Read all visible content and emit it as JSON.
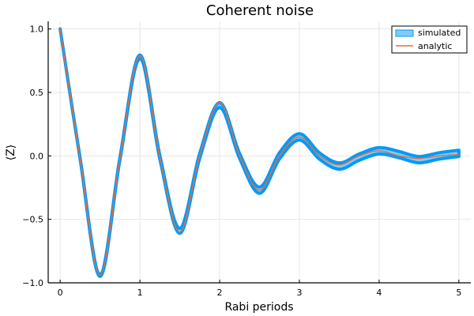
{
  "chart_data": {
    "type": "line",
    "title": "Coherent noise",
    "xlabel": "Rabi periods",
    "ylabel": "⟨Z⟩",
    "xlim": [
      -0.15,
      5.15
    ],
    "ylim": [
      -1.0,
      1.06
    ],
    "x_ticks": [
      0,
      1,
      2,
      3,
      4,
      5
    ],
    "x_tick_labels": [
      "0",
      "1",
      "2",
      "3",
      "4",
      "5"
    ],
    "y_ticks": [
      -1.0,
      -0.5,
      0.0,
      0.5,
      1.0
    ],
    "y_tick_labels": [
      "−1.0",
      "−0.5",
      "0.0",
      "0.5",
      "1.0"
    ],
    "grid": true,
    "legend_position": "top-right",
    "series": [
      {
        "name": "simulated",
        "style": "ribbon",
        "color": "#009af9",
        "x": [
          0,
          0.25,
          0.5,
          0.75,
          1.0,
          1.25,
          1.5,
          1.75,
          2.0,
          2.25,
          2.5,
          2.75,
          3.0,
          3.25,
          3.5,
          3.75,
          4.0,
          4.25,
          4.5,
          4.75,
          5.0
        ],
        "y_mean": [
          1.0,
          -0.02,
          -0.94,
          -0.02,
          0.78,
          -0.01,
          -0.59,
          0.0,
          0.4,
          0.0,
          -0.27,
          0.0,
          0.15,
          0.0,
          -0.08,
          -0.01,
          0.04,
          0.01,
          -0.03,
          0.0,
          0.02
        ],
        "y_band": [
          0.0,
          0.005,
          0.01,
          0.01,
          0.015,
          0.015,
          0.02,
          0.02,
          0.02,
          0.02,
          0.025,
          0.025,
          0.025,
          0.025,
          0.025,
          0.025,
          0.025,
          0.025,
          0.025,
          0.025,
          0.025
        ]
      },
      {
        "name": "analytic",
        "style": "line",
        "color": "#e26f46",
        "x": [
          0,
          0.25,
          0.5,
          0.75,
          1.0,
          1.25,
          1.5,
          1.75,
          2.0,
          2.25,
          2.5,
          2.75,
          3.0,
          3.25,
          3.5,
          3.75,
          4.0,
          4.25,
          4.5,
          4.75,
          5.0
        ],
        "y": [
          1.0,
          -0.02,
          -0.94,
          -0.02,
          0.79,
          -0.01,
          -0.6,
          0.0,
          0.42,
          0.0,
          -0.27,
          0.0,
          0.15,
          0.0,
          -0.07,
          0.0,
          0.04,
          0.0,
          -0.02,
          0.0,
          0.01
        ]
      }
    ]
  }
}
